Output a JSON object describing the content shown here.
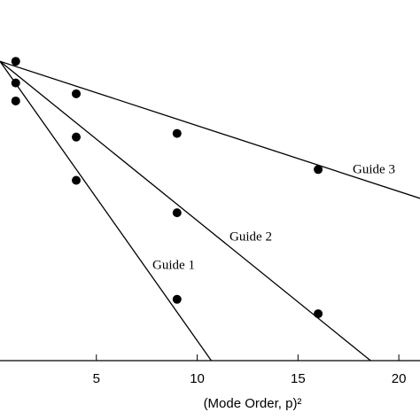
{
  "chart_data": {
    "type": "scatter",
    "x_label": "(Mode Order, p)²",
    "xlim": [
      0.22,
      21.05
    ],
    "ylim": [
      0,
      1
    ],
    "xticks": [
      5,
      10,
      15,
      20
    ],
    "series": [
      {
        "name": "Guide 1",
        "color": "#000000",
        "x": [
          1,
          4,
          9
        ],
        "values": [
          0.72,
          0.5,
          0.17
        ],
        "fit": {
          "x": [
            0.22,
            10.7
          ],
          "values": [
            0.83,
            0
          ]
        }
      },
      {
        "name": "Guide 2",
        "color": "#000000",
        "x": [
          1,
          4,
          9,
          16
        ],
        "values": [
          0.77,
          0.62,
          0.41,
          0.13
        ],
        "fit": {
          "x": [
            0.22,
            18.6
          ],
          "values": [
            0.83,
            0
          ]
        }
      },
      {
        "name": "Guide 3",
        "color": "#000000",
        "x": [
          1,
          4,
          9,
          16
        ],
        "values": [
          0.83,
          0.74,
          0.63,
          0.53
        ],
        "fit": {
          "x": [
            0.22,
            21.05
          ],
          "values": [
            0.83,
            0.45
          ]
        }
      }
    ]
  }
}
